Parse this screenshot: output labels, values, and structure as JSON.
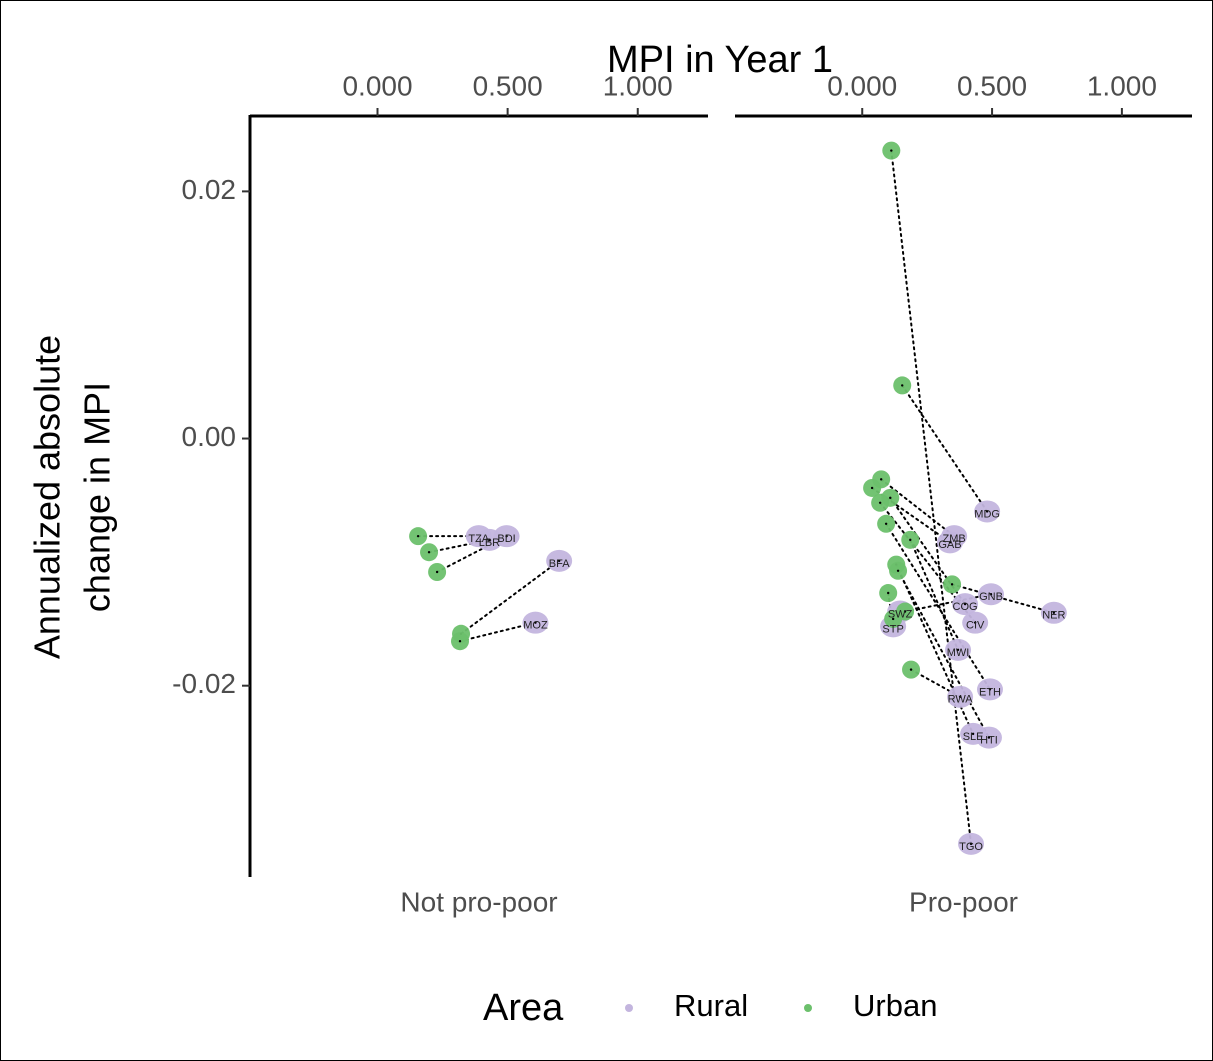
{
  "chart_data": {
    "type": "scatter",
    "title": "MPI in Year 1",
    "y_label": [
      "Annualized absolute",
      "change in MPI"
    ],
    "legend_title": "Area",
    "legend_position": "bottom",
    "series": [
      {
        "name": "Rural",
        "color": "#c3b5de"
      },
      {
        "name": "Urban",
        "color": "#6cc06c"
      }
    ],
    "xlim": [
      -0.49,
      1.27
    ],
    "xticks": [
      {
        "value": 0,
        "label": "0.000"
      },
      {
        "value": 0.5,
        "label": "0.500"
      },
      {
        "value": 1,
        "label": "1.000"
      }
    ],
    "ylim": [
      -0.0354,
      0.0261
    ],
    "yticks": [
      {
        "value": 0.02,
        "label": "0.02"
      },
      {
        "value": 0,
        "label": "0.00"
      },
      {
        "value": -0.02,
        "label": "-0.02"
      }
    ],
    "panels": [
      {
        "name": "Not pro-poor",
        "labels": [
          "TZA",
          "LBR",
          "BDI",
          "BFA",
          "MOZ"
        ],
        "rural_x": [
          0.389,
          0.43,
          0.496,
          0.698,
          0.607
        ],
        "rural_y": [
          -0.0079,
          -0.0082,
          -0.0079,
          -0.0099,
          -0.0149
        ],
        "urban_x": [
          0.156,
          0.198,
          0.229,
          0.321,
          0.317
        ],
        "urban_y": [
          -0.0079,
          -0.0092,
          -0.0108,
          -0.0158,
          -0.0164
        ]
      },
      {
        "name": "Pro-poor",
        "labels": [
          "MDG",
          "ZMB",
          "GAB",
          "GNB",
          "COG",
          "NER",
          "CIV",
          "MWI",
          "ETH",
          "RWA",
          "SLE",
          "HTI",
          "TGO",
          "SWZ",
          "STP"
        ],
        "rural_x": [
          0.481,
          0.354,
          0.338,
          0.496,
          0.396,
          0.738,
          0.435,
          0.369,
          0.492,
          0.377,
          0.427,
          0.488,
          0.419,
          0.146,
          0.119
        ],
        "rural_y": [
          -0.0059,
          -0.0079,
          -0.0084,
          -0.0126,
          -0.0134,
          -0.0141,
          -0.0149,
          -0.0171,
          -0.0203,
          -0.0209,
          -0.0239,
          -0.0242,
          -0.0328,
          -0.014,
          -0.0152
        ],
        "urban_x": [
          0.154,
          0.073,
          0.038,
          0.165,
          0.108,
          0.346,
          0.069,
          0.185,
          0.092,
          0.188,
          0.131,
          0.138,
          0.112,
          0.119,
          0.1
        ],
        "urban_y": [
          0.0043,
          -0.0033,
          -0.004,
          -0.014,
          -0.0048,
          -0.0118,
          -0.0052,
          -0.0082,
          -0.0069,
          -0.0187,
          -0.0102,
          -0.0107,
          0.0233,
          -0.0146,
          -0.0125
        ]
      }
    ]
  }
}
